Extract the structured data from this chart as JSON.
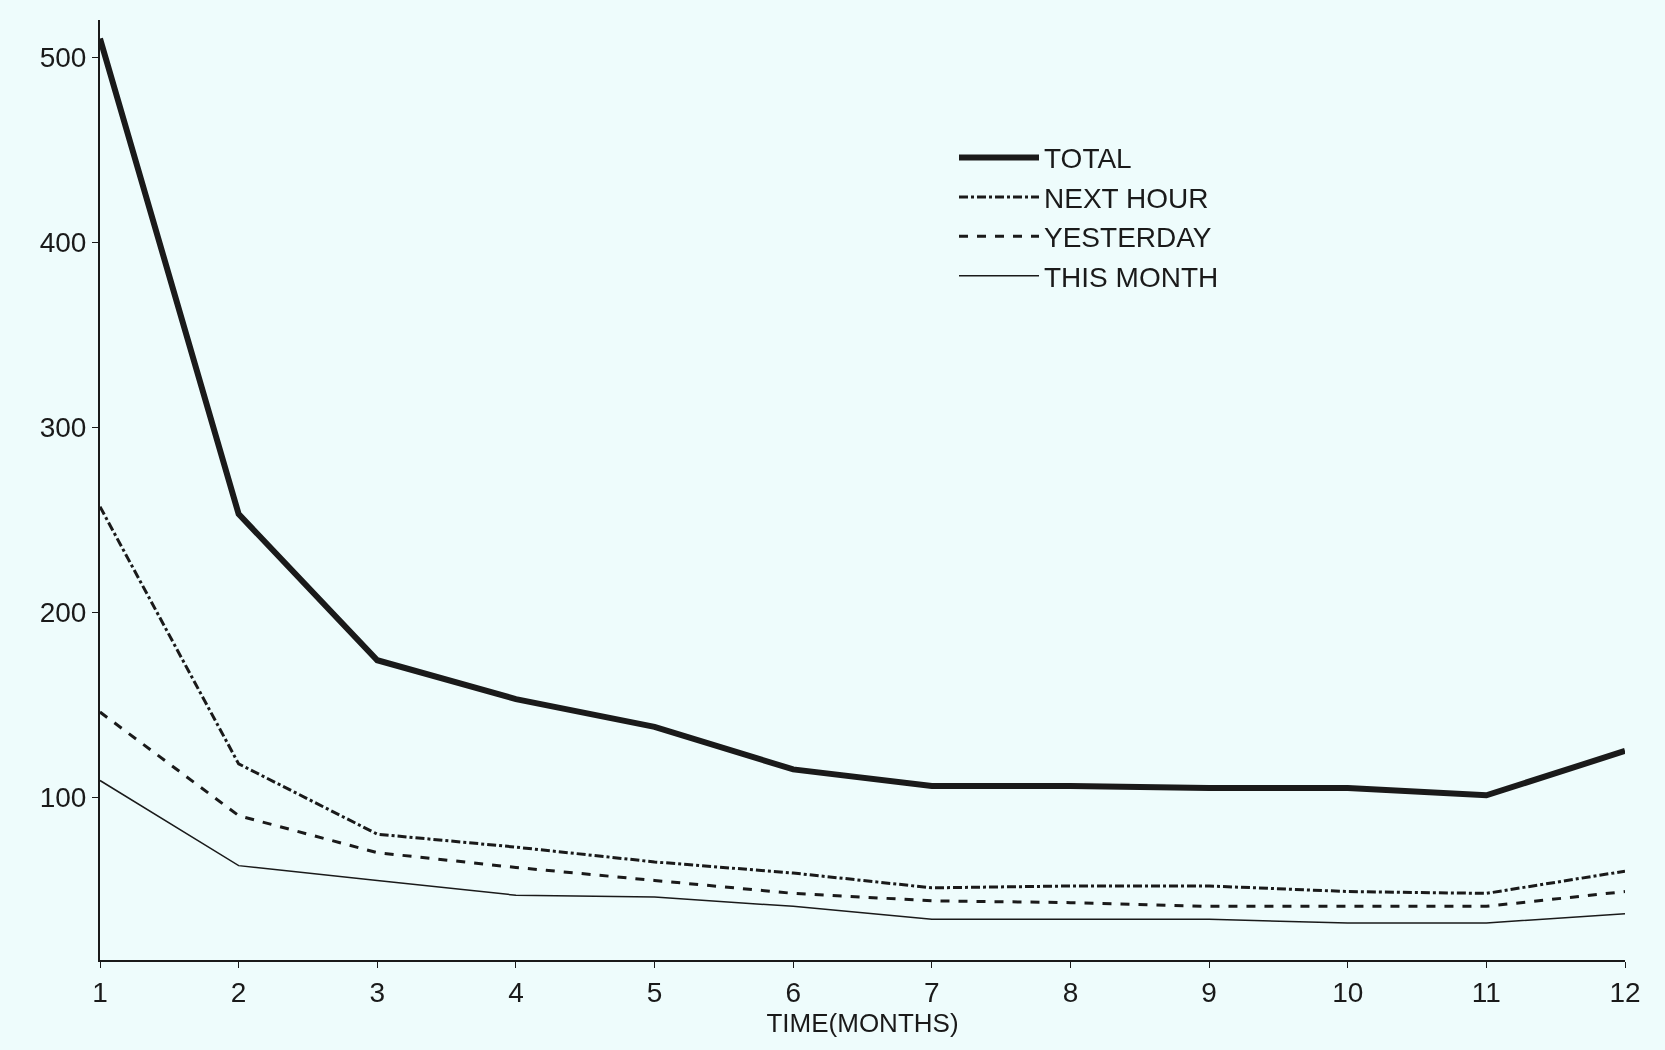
{
  "chart_data": {
    "type": "line",
    "xlabel": "TIME(MONTHS)",
    "x": [
      1,
      2,
      3,
      4,
      5,
      6,
      7,
      8,
      9,
      10,
      11,
      12
    ],
    "series": [
      {
        "name": "TOTAL",
        "color": "#1a1a1a",
        "line_style": "solid",
        "values": [
          510,
          253,
          174,
          153,
          138,
          115,
          106,
          106,
          105,
          105,
          101,
          125
        ]
      },
      {
        "name": "NEXT HOUR",
        "color": "#1a1a1a",
        "line_style": "dashdot",
        "values": [
          257,
          118,
          80,
          73,
          65,
          59,
          51,
          52,
          52,
          49,
          48,
          60
        ]
      },
      {
        "name": "YESTERDAY",
        "color": "#1a1a1a",
        "line_style": "dashed",
        "values": [
          146,
          90,
          70,
          62,
          55,
          48,
          44,
          43,
          41,
          41,
          41,
          49
        ]
      },
      {
        "name": "THIS MONTH",
        "color": "#1a1a1a",
        "line_style": "solid",
        "values": [
          109,
          63,
          55,
          47,
          46,
          41,
          34,
          34,
          34,
          32,
          32,
          37
        ]
      }
    ],
    "xlim": [
      1,
      12
    ],
    "xticks": [
      1,
      2,
      3,
      4,
      5,
      6,
      7,
      8,
      9,
      10,
      11,
      12
    ],
    "ylim": [
      12,
      520
    ],
    "yticks": [
      100,
      200,
      300,
      400,
      500
    ],
    "grid": false,
    "legend": "top right",
    "marker": "none"
  }
}
